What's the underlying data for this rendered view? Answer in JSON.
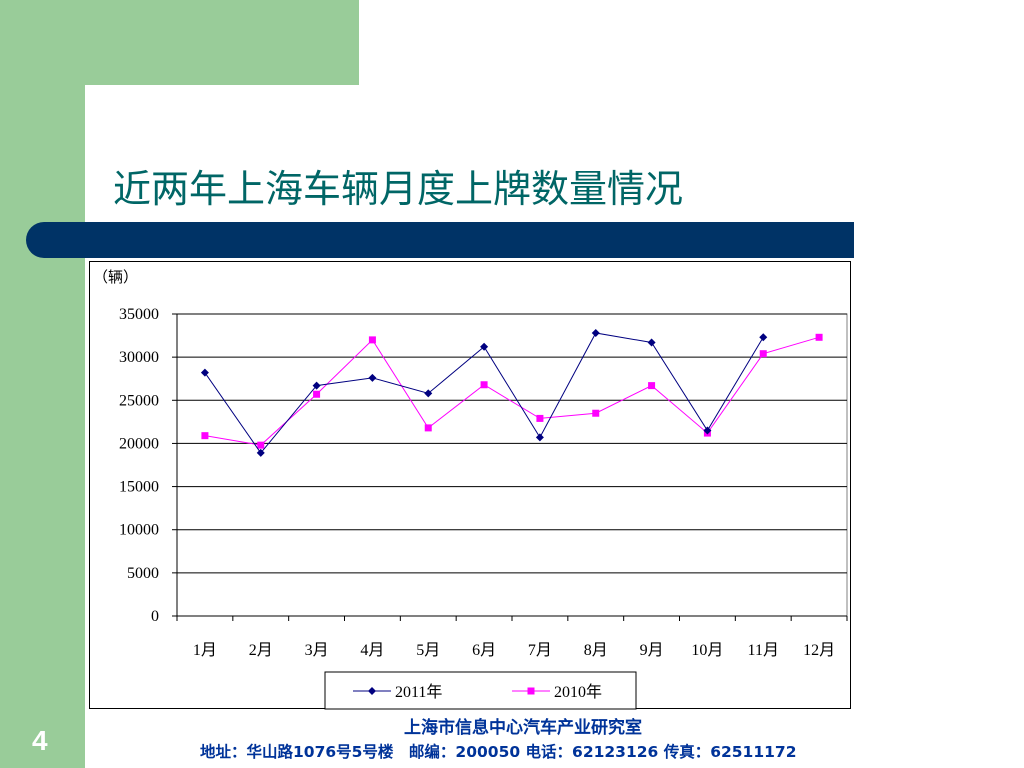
{
  "slide": {
    "title": "近两年上海车辆月度上牌数量情况",
    "page_number": "4",
    "footer_line1": "上海市信息中心汽车产业研究室",
    "footer_line2": "地址：华山路1076号5号楼　邮编：200050  电话：62123126  传真：62511172"
  },
  "colors": {
    "green_accent": "#99cc99",
    "title_color": "#006666",
    "bar_color": "#003366",
    "footer_color": "#003399"
  },
  "chart_data": {
    "type": "line",
    "unit_label": "（辆）",
    "categories": [
      "1月",
      "2月",
      "3月",
      "4月",
      "5月",
      "6月",
      "7月",
      "8月",
      "9月",
      "10月",
      "11月",
      "12月"
    ],
    "ylim": [
      0,
      35000
    ],
    "yticks": [
      0,
      5000,
      10000,
      15000,
      20000,
      25000,
      30000,
      35000
    ],
    "grid": true,
    "legend_position": "bottom",
    "series": [
      {
        "name": "2011年",
        "color": "#000080",
        "marker": "diamond",
        "values": [
          28200,
          18900,
          26700,
          27600,
          25800,
          31200,
          20700,
          32800,
          31700,
          21500,
          32300,
          null
        ]
      },
      {
        "name": "2010年",
        "color": "#ff00ff",
        "marker": "square",
        "values": [
          20900,
          19800,
          25700,
          32000,
          21800,
          26800,
          22900,
          23500,
          26700,
          21200,
          30400,
          32300
        ]
      }
    ]
  }
}
